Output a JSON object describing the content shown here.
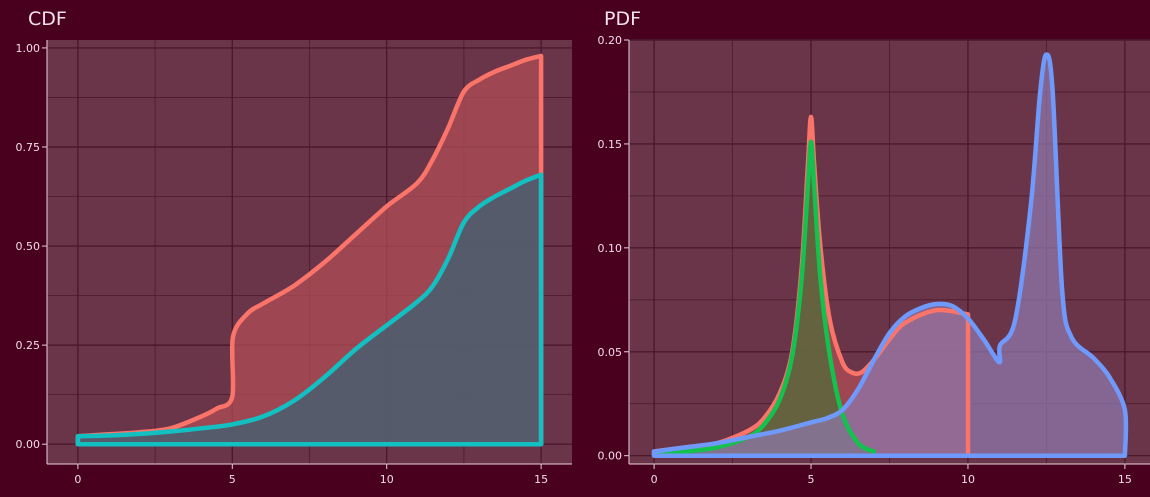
{
  "colors": {
    "background": "#48001e",
    "panel": "#6b3549",
    "grid": "#4a1a2c",
    "tick": "#e8cfd8"
  },
  "chart_data": [
    {
      "type": "area",
      "title": "CDF",
      "xlim": [
        -1.0,
        16.0
      ],
      "ylim": [
        -0.05,
        1.02
      ],
      "x_ticks": [
        0,
        5,
        10,
        15
      ],
      "y_ticks": [
        0.0,
        0.25,
        0.5,
        0.75,
        1.0
      ],
      "x_tick_labels": [
        "0",
        "5",
        "10",
        "15"
      ],
      "y_tick_labels": [
        "0.00",
        "0.25",
        "0.50",
        "0.75",
        "1.00"
      ],
      "grid": true,
      "legend": "none",
      "series": [
        {
          "color": "#fa7469",
          "fill": "#b24f56",
          "x": [
            0,
            1,
            2,
            3,
            4,
            4.5,
            5,
            5.02,
            5.5,
            6,
            7,
            8,
            9,
            10,
            11,
            11.5,
            12,
            12.5,
            13,
            13.5,
            14,
            14.5,
            15
          ],
          "y": [
            0.02,
            0.025,
            0.03,
            0.04,
            0.07,
            0.09,
            0.12,
            0.27,
            0.33,
            0.355,
            0.4,
            0.46,
            0.53,
            0.6,
            0.66,
            0.72,
            0.8,
            0.89,
            0.92,
            0.94,
            0.955,
            0.97,
            0.98
          ]
        },
        {
          "color": "#12c0c2",
          "fill": "#3a6475",
          "x": [
            0,
            1,
            2,
            3,
            4,
            5,
            6,
            7,
            8,
            9,
            10,
            11,
            11.5,
            12,
            12.5,
            13,
            13.5,
            14,
            14.5,
            15
          ],
          "y": [
            0.02,
            0.022,
            0.026,
            0.032,
            0.04,
            0.05,
            0.07,
            0.11,
            0.17,
            0.24,
            0.3,
            0.36,
            0.4,
            0.47,
            0.56,
            0.6,
            0.625,
            0.645,
            0.665,
            0.68
          ]
        }
      ]
    },
    {
      "type": "area",
      "title": "PDF",
      "xlim": [
        -0.8,
        15.8
      ],
      "ylim": [
        -0.004,
        0.2
      ],
      "x_ticks": [
        0,
        5,
        10,
        15
      ],
      "y_ticks": [
        0.0,
        0.05,
        0.1,
        0.15,
        0.2
      ],
      "x_tick_labels": [
        "0",
        "5",
        "10",
        "15"
      ],
      "y_tick_labels": [
        "0.00",
        "0.05",
        "0.10",
        "0.15",
        "0.20"
      ],
      "grid": true,
      "legend": "none",
      "series": [
        {
          "color": "#fa7469",
          "fill": "#b24f56",
          "x": [
            0,
            1,
            2,
            3,
            3.5,
            4,
            4.4,
            4.7,
            4.9,
            5,
            5.1,
            5.3,
            5.6,
            6,
            6.3,
            6.6,
            7,
            7.5,
            8,
            9,
            10
          ],
          "y": [
            0.002,
            0.004,
            0.006,
            0.012,
            0.018,
            0.03,
            0.05,
            0.09,
            0.14,
            0.163,
            0.14,
            0.1,
            0.065,
            0.045,
            0.04,
            0.04,
            0.046,
            0.056,
            0.064,
            0.07,
            0.068
          ]
        },
        {
          "color": "#14c04e",
          "fill": "#4f6e37",
          "x": [
            0,
            1,
            2,
            3,
            3.5,
            4,
            4.4,
            4.7,
            4.9,
            5,
            5.1,
            5.3,
            5.6,
            6,
            6.5,
            7
          ],
          "y": [
            0.001,
            0.002,
            0.004,
            0.009,
            0.015,
            0.027,
            0.048,
            0.085,
            0.13,
            0.151,
            0.13,
            0.085,
            0.048,
            0.02,
            0.006,
            0.002
          ]
        },
        {
          "color": "#6f9afb",
          "fill": "#8f78ad",
          "x": [
            0,
            1,
            2,
            3,
            4,
            5,
            5.5,
            6,
            6.5,
            7,
            7.5,
            8,
            8.5,
            9,
            9.5,
            10,
            10.5,
            11,
            11.02,
            11.5,
            12,
            12.3,
            12.5,
            12.7,
            13,
            13.3,
            14,
            14.5,
            15,
            15
          ],
          "y": [
            0.002,
            0.004,
            0.006,
            0.009,
            0.012,
            0.016,
            0.018,
            0.022,
            0.032,
            0.046,
            0.059,
            0.067,
            0.071,
            0.073,
            0.072,
            0.066,
            0.056,
            0.045,
            0.053,
            0.065,
            0.12,
            0.175,
            0.193,
            0.175,
            0.08,
            0.057,
            0.047,
            0.038,
            0.022,
            0.0
          ]
        }
      ]
    }
  ]
}
